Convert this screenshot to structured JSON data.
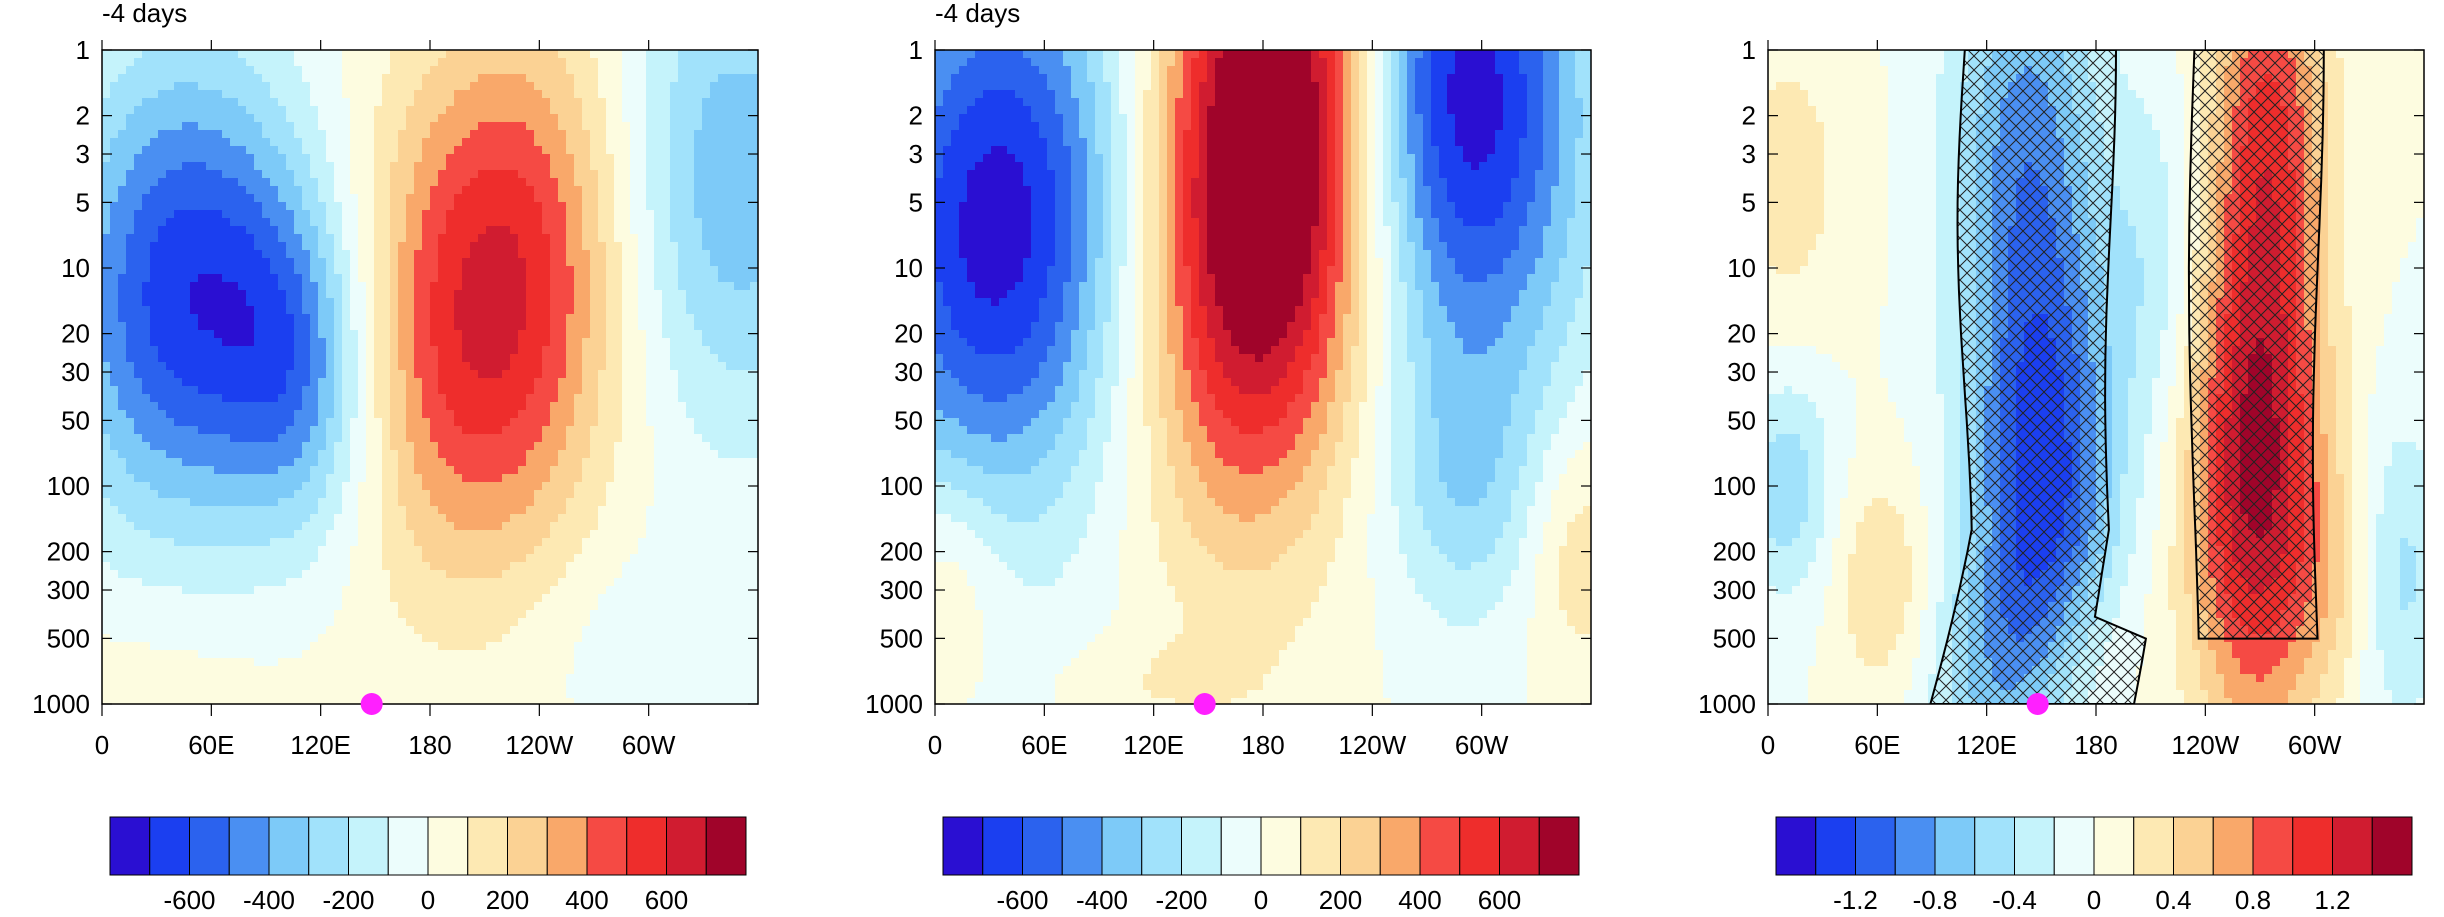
{
  "figure": {
    "palette": [
      "#2a0fd2",
      "#1b3ff0",
      "#2b62ee",
      "#4a8ff2",
      "#7dcaf8",
      "#a1e2fb",
      "#c5f3fb",
      "#ecfdfc",
      "#fdfce0",
      "#fde9b3",
      "#fbd294",
      "#f9a86a",
      "#f54a44",
      "#ee2d2c",
      "#d01c30",
      "#a0042a"
    ],
    "hatch_color": "#222222",
    "marker_color": "#ff20ff"
  },
  "chart_data": [
    {
      "type": "heatmap",
      "panel_label": "-4 days",
      "x_ticks": [
        "0",
        "60E",
        "120E",
        "180",
        "120W",
        "60W"
      ],
      "x_tick_lon": [
        0,
        60,
        120,
        180,
        240,
        300
      ],
      "x_range": [
        0,
        360
      ],
      "y_ticks": [
        "1",
        "2",
        "3",
        "5",
        "10",
        "20",
        "30",
        "50",
        "100",
        "200",
        "300",
        "500",
        "1000"
      ],
      "y_range_hPa": [
        1,
        1000
      ],
      "y_scale": "log",
      "colorbar_labels": [
        "-600",
        "-400",
        "-200",
        "0",
        "200",
        "400",
        "600"
      ],
      "levels": [
        -700,
        -600,
        -500,
        -400,
        -300,
        -200,
        -100,
        0,
        100,
        200,
        300,
        400,
        500,
        600,
        700
      ],
      "marker": {
        "lon": 148,
        "pressure_hPa": 1000
      },
      "features": [
        {
          "sign": "neg",
          "lon": 40,
          "pressure_hPa": 10,
          "peak": -650
        },
        {
          "sign": "neg",
          "lon": 105,
          "pressure_hPa": 25,
          "peak": -560
        },
        {
          "sign": "pos",
          "lon": 215,
          "pressure_hPa": 12,
          "peak": 640
        },
        {
          "sign": "neg",
          "lon": 330,
          "pressure_hPa": 5,
          "peak": -350
        },
        {
          "sign": "neg",
          "lon": 300,
          "pressure_hPa": 600,
          "peak": -80
        }
      ]
    },
    {
      "type": "heatmap",
      "panel_label": "-4 days",
      "x_ticks": [
        "0",
        "60E",
        "120E",
        "180",
        "120W",
        "60W"
      ],
      "x_tick_lon": [
        0,
        60,
        120,
        180,
        240,
        300
      ],
      "x_range": [
        0,
        360
      ],
      "y_ticks": [
        "1",
        "2",
        "3",
        "5",
        "10",
        "20",
        "30",
        "50",
        "100",
        "200",
        "300",
        "500",
        "1000"
      ],
      "y_range_hPa": [
        1,
        1000
      ],
      "y_scale": "log",
      "colorbar_labels": [
        "-600",
        "-400",
        "-200",
        "0",
        "200",
        "400",
        "600"
      ],
      "levels": [
        -700,
        -600,
        -500,
        -400,
        -300,
        -200,
        -100,
        0,
        100,
        200,
        300,
        400,
        500,
        600,
        700
      ],
      "marker": {
        "lon": 148,
        "pressure_hPa": 1000
      },
      "features": [
        {
          "sign": "neg",
          "lon": 35,
          "pressure_hPa": 6,
          "peak": -720
        },
        {
          "sign": "pos",
          "lon": 175,
          "pressure_hPa": 4,
          "peak": 950
        },
        {
          "sign": "neg",
          "lon": 305,
          "pressure_hPa": 1.5,
          "peak": -740
        },
        {
          "sign": "neg",
          "lon": 290,
          "pressure_hPa": 100,
          "peak": -250
        },
        {
          "sign": "pos",
          "lon": 350,
          "pressure_hPa": 200,
          "peak": 180
        },
        {
          "sign": "pos",
          "lon": 5,
          "pressure_hPa": 300,
          "peak": 150
        }
      ]
    },
    {
      "type": "heatmap",
      "panel_label": "",
      "x_ticks": [
        "0",
        "60E",
        "120E",
        "180",
        "120W",
        "60W"
      ],
      "x_tick_lon": [
        0,
        60,
        120,
        180,
        240,
        300
      ],
      "x_range": [
        0,
        360
      ],
      "y_ticks": [
        "1",
        "2",
        "3",
        "5",
        "10",
        "20",
        "30",
        "50",
        "100",
        "200",
        "300",
        "500",
        "1000"
      ],
      "y_range_hPa": [
        1,
        1000
      ],
      "y_scale": "log",
      "colorbar_labels": [
        "-1.2",
        "-0.8",
        "-0.4",
        "0",
        "0.4",
        "0.8",
        "1.2"
      ],
      "levels": [
        -1.4,
        -1.2,
        -1.0,
        -0.8,
        -0.6,
        -0.4,
        -0.2,
        0,
        0.2,
        0.4,
        0.6,
        0.8,
        1.0,
        1.2,
        1.4
      ],
      "marker": {
        "lon": 148,
        "pressure_hPa": 1000
      },
      "hatched_regions": [
        "lon 100-200 (negative)",
        "lon 235-300 (positive)"
      ],
      "features": [
        {
          "sign": "neg",
          "lon": 150,
          "pressure_hPa": 100,
          "peak": -1.3
        },
        {
          "sign": "pos",
          "lon": 268,
          "pressure_hPa": 100,
          "peak": 1.4
        },
        {
          "sign": "pos",
          "lon": 60,
          "pressure_hPa": 300,
          "peak": 0.35
        },
        {
          "sign": "neg",
          "lon": 10,
          "pressure_hPa": 100,
          "peak": -0.5
        },
        {
          "sign": "pos",
          "lon": 10,
          "pressure_hPa": 5,
          "peak": 0.3
        },
        {
          "sign": "neg",
          "lon": 345,
          "pressure_hPa": 300,
          "peak": -0.5
        }
      ]
    }
  ]
}
